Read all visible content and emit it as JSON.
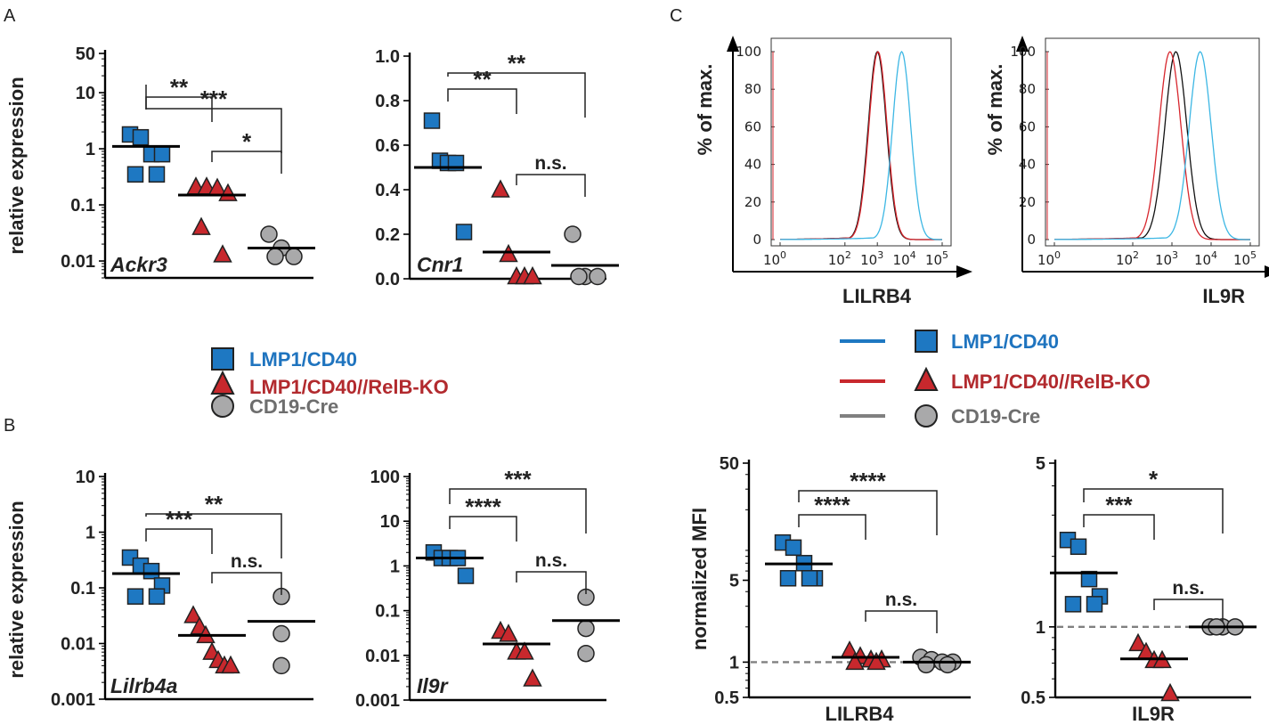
{
  "panel_labels": [
    "A",
    "B",
    "C"
  ],
  "colors": {
    "blue": "#1E78C2",
    "red": "#C8282D",
    "gray": "#A9A9AA",
    "blue_text": "#1F74BF",
    "red_text": "#B22A2E",
    "gray_text": "#6E6E6E",
    "cyan": "#3DB7E4"
  },
  "legend": [
    {
      "label": "LMP1/CD40",
      "marker": "square",
      "color": "#1E78C2",
      "text_color": "#1F74BF"
    },
    {
      "label": "LMP1/CD40//RelB-KO",
      "marker": "triangle",
      "color": "#C8282D",
      "text_color": "#B22A2E"
    },
    {
      "label": "CD19-Cre",
      "marker": "circle",
      "color": "#A9A9AA",
      "text_color": "#6E6E6E"
    }
  ],
  "chart_data": [
    {
      "id": "ackr3",
      "panel": "A",
      "type": "scatter",
      "scale": "log",
      "ylabel": "relative expression",
      "gene": "Ackr3",
      "yticks": [
        "50",
        "10",
        "1",
        "0.1",
        "0.01"
      ],
      "tick_values": [
        50,
        10,
        1,
        0.1,
        0.01
      ],
      "ylim": [
        0.005,
        50
      ],
      "groups": [
        {
          "name": "LMP1/CD40",
          "values": [
            1.8,
            1.6,
            0.8,
            0.8,
            0.35,
            0.35
          ],
          "mean": 1.1
        },
        {
          "name": "LMP1/CD40//RelB-KO",
          "values": [
            0.21,
            0.21,
            0.2,
            0.16,
            0.04,
            0.013
          ],
          "mean": 0.15
        },
        {
          "name": "CD19-Cre",
          "values": [
            0.03,
            0.017,
            0.012,
            0.012
          ],
          "mean": 0.017
        }
      ],
      "comparisons": [
        {
          "from": 0,
          "to": 2,
          "label": "***"
        },
        {
          "from": 0,
          "to": 1,
          "label": "**"
        },
        {
          "from": 1,
          "to": 2,
          "label": "*"
        }
      ]
    },
    {
      "id": "cnr1",
      "panel": "A",
      "type": "scatter",
      "scale": "linear",
      "ylabel": "",
      "gene": "Cnr1",
      "yticks": [
        "1.0",
        "0.8",
        "0.6",
        "0.4",
        "0.2",
        "0.0"
      ],
      "tick_values": [
        1.0,
        0.8,
        0.6,
        0.4,
        0.2,
        0.0
      ],
      "ylim": [
        0,
        1.0
      ],
      "groups": [
        {
          "name": "LMP1/CD40",
          "values": [
            0.71,
            0.53,
            0.52,
            0.52,
            0.21
          ],
          "mean": 0.5
        },
        {
          "name": "LMP1/CD40//RelB-KO",
          "values": [
            0.4,
            0.11,
            0.01,
            0.01,
            0.01
          ],
          "mean": 0.12
        },
        {
          "name": "CD19-Cre",
          "values": [
            0.2,
            0.01,
            0.01,
            0.01
          ],
          "mean": 0.06
        }
      ],
      "comparisons": [
        {
          "from": 0,
          "to": 2,
          "label": "**"
        },
        {
          "from": 0,
          "to": 1,
          "label": "**"
        },
        {
          "from": 1,
          "to": 2,
          "label": "n.s."
        }
      ]
    },
    {
      "id": "lilrb4a",
      "panel": "B",
      "type": "scatter",
      "scale": "log",
      "ylabel": "relative expression",
      "gene": "Lilrb4a",
      "yticks": [
        "10",
        "1",
        "0.1",
        "0.01",
        "0.001"
      ],
      "tick_values": [
        10,
        1,
        0.1,
        0.01,
        0.001
      ],
      "ylim": [
        0.001,
        10
      ],
      "groups": [
        {
          "name": "LMP1/CD40",
          "values": [
            0.35,
            0.25,
            0.2,
            0.11,
            0.07,
            0.07
          ],
          "mean": 0.18
        },
        {
          "name": "LMP1/CD40//RelB-KO",
          "values": [
            0.032,
            0.02,
            0.014,
            0.007,
            0.005,
            0.004,
            0.004
          ],
          "mean": 0.014
        },
        {
          "name": "CD19-Cre",
          "values": [
            0.07,
            0.015,
            0.004
          ],
          "mean": 0.025
        }
      ],
      "comparisons": [
        {
          "from": 0,
          "to": 2,
          "label": "**"
        },
        {
          "from": 0,
          "to": 1,
          "label": "***"
        },
        {
          "from": 1,
          "to": 2,
          "label": "n.s."
        }
      ]
    },
    {
      "id": "il9r",
      "panel": "B",
      "type": "scatter",
      "scale": "log",
      "ylabel": "",
      "gene": "Il9r",
      "yticks": [
        "100",
        "10",
        "1",
        "0.1",
        "0.01",
        "0.001"
      ],
      "tick_values": [
        100,
        10,
        1,
        0.1,
        0.01,
        0.001
      ],
      "ylim": [
        0.001,
        100
      ],
      "groups": [
        {
          "name": "LMP1/CD40",
          "values": [
            2.0,
            1.5,
            1.5,
            1.5,
            0.6
          ],
          "mean": 1.5
        },
        {
          "name": "LMP1/CD40//RelB-KO",
          "values": [
            0.035,
            0.03,
            0.012,
            0.012,
            0.003
          ],
          "mean": 0.018
        },
        {
          "name": "CD19-Cre",
          "values": [
            0.2,
            0.04,
            0.011
          ],
          "mean": 0.06
        }
      ],
      "comparisons": [
        {
          "from": 0,
          "to": 2,
          "label": "***"
        },
        {
          "from": 0,
          "to": 1,
          "label": "****"
        },
        {
          "from": 1,
          "to": 2,
          "label": "n.s."
        }
      ]
    },
    {
      "id": "mfi_lilrb4",
      "panel": "C",
      "type": "scatter",
      "scale": "log",
      "ylabel": "normalized MFI",
      "xlabel": "LILRB4",
      "yticks": [
        "50",
        "5",
        "1",
        "0.5"
      ],
      "tick_values": [
        50,
        5,
        1,
        0.5
      ],
      "ylim": [
        0.5,
        50
      ],
      "reference_line": 1,
      "groups": [
        {
          "name": "LMP1/CD40",
          "values": [
            10.5,
            9.5,
            7.0,
            5.2,
            5.2,
            5.2
          ],
          "mean": 6.9
        },
        {
          "name": "LMP1/CD40//RelB-KO",
          "values": [
            1.25,
            1.12,
            1.05,
            1.05,
            1.0,
            1.0
          ],
          "mean": 1.1
        },
        {
          "name": "CD19-Cre",
          "values": [
            1.1,
            1.05,
            1.0,
            1.0,
            0.95,
            0.95
          ],
          "mean": 1.0
        }
      ],
      "comparisons": [
        {
          "from": 0,
          "to": 2,
          "label": "****"
        },
        {
          "from": 0,
          "to": 1,
          "label": "****"
        },
        {
          "from": 1,
          "to": 2,
          "label": "n.s."
        }
      ]
    },
    {
      "id": "mfi_il9r",
      "panel": "C",
      "type": "scatter",
      "scale": "log",
      "ylabel": "",
      "xlabel": "IL9R",
      "yticks": [
        "5",
        "1",
        "0.5"
      ],
      "tick_values": [
        5,
        1,
        0.5
      ],
      "ylim": [
        0.5,
        5
      ],
      "reference_line": 1,
      "groups": [
        {
          "name": "LMP1/CD40",
          "values": [
            2.35,
            2.2,
            1.6,
            1.35,
            1.25,
            1.25
          ],
          "mean": 1.7
        },
        {
          "name": "LMP1/CD40//RelB-KO",
          "values": [
            0.85,
            0.78,
            0.72,
            0.72,
            0.52
          ],
          "mean": 0.73
        },
        {
          "name": "CD19-Cre",
          "values": [
            1.0,
            1.0,
            1.0,
            1.0
          ],
          "mean": 1.0
        }
      ],
      "comparisons": [
        {
          "from": 0,
          "to": 2,
          "label": "*"
        },
        {
          "from": 0,
          "to": 1,
          "label": "***"
        },
        {
          "from": 1,
          "to": 2,
          "label": "n.s."
        }
      ]
    },
    {
      "id": "hist_lilrb4",
      "panel": "C",
      "type": "line",
      "subtype": "flow-histogram",
      "ylabel": "% of max.",
      "xlabel": "LILRB4",
      "yticks": [
        "100",
        "80",
        "60",
        "40",
        "20",
        "0"
      ],
      "xticks": [
        "0",
        "2",
        "3",
        "4",
        "5"
      ],
      "x_tick_base": "10",
      "series": [
        {
          "name": "CD19-Cre",
          "color": "#111111",
          "peak_log10": 3.0
        },
        {
          "name": "LMP1/CD40//RelB-KO",
          "color": "#D7262D",
          "peak_log10": 3.02
        },
        {
          "name": "LMP1/CD40",
          "color": "#3DB7E4",
          "peak_log10": 3.75
        }
      ]
    },
    {
      "id": "hist_il9r",
      "panel": "C",
      "type": "line",
      "subtype": "flow-histogram",
      "ylabel": "% of max.",
      "xlabel": "IL9R",
      "yticks": [
        "100",
        "80",
        "60",
        "40",
        "20",
        "0"
      ],
      "xticks": [
        "0",
        "2",
        "3",
        "4",
        "5"
      ],
      "x_tick_base": "10",
      "series": [
        {
          "name": "CD19-Cre",
          "color": "#111111",
          "peak_log10": 3.1
        },
        {
          "name": "LMP1/CD40//RelB-KO",
          "color": "#D7262D",
          "peak_log10": 2.95
        },
        {
          "name": "LMP1/CD40",
          "color": "#3DB7E4",
          "peak_log10": 3.72
        }
      ]
    }
  ]
}
